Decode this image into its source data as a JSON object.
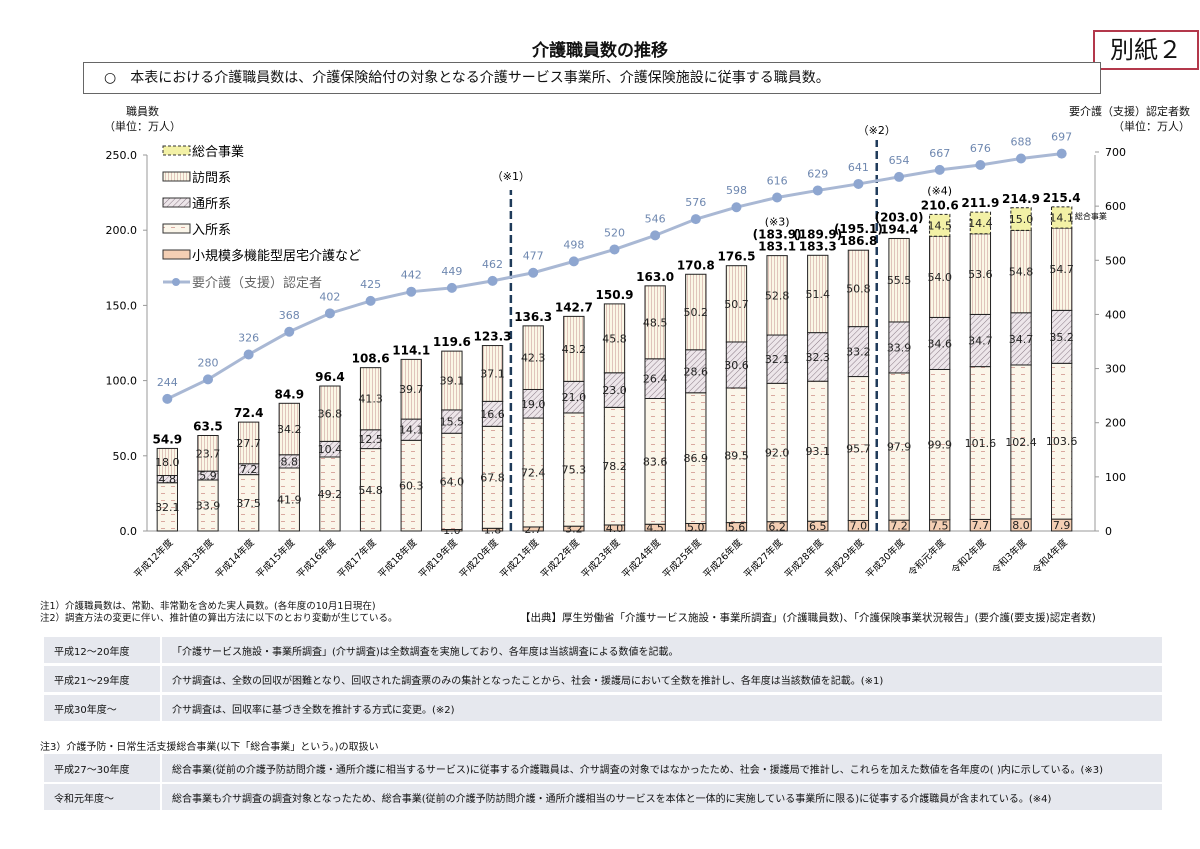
{
  "header": {
    "title": "介護職員数の推移",
    "badge": "別紙２",
    "lead": "○　本表における介護職員数は、介護保険給付の対象となる介護サービス事業所、介護保険施設に従事する職員数。"
  },
  "axes": {
    "left_label_line1": "職員数",
    "left_label_line2": "（単位：万人）",
    "right_label_line1": "要介護（支援）認定者数",
    "right_label_line2": "（単位：万人）"
  },
  "chart_data": {
    "type": "bar",
    "stacked": true,
    "title": "介護職員数の推移",
    "xlabel": "",
    "ylabel": "職員数（単位：万人）",
    "y2label": "要介護（支援）認定者数（単位：万人）",
    "ylim": [
      0,
      250
    ],
    "y2lim": [
      0,
      700
    ],
    "yticks": [
      "0.0",
      "50.0",
      "100.0",
      "150.0",
      "200.0",
      "250.0"
    ],
    "y2ticks": [
      "0",
      "100",
      "200",
      "300",
      "400",
      "500",
      "600",
      "700"
    ],
    "categories": [
      "平成12年度",
      "平成13年度",
      "平成14年度",
      "平成15年度",
      "平成16年度",
      "平成17年度",
      "平成18年度",
      "平成19年度",
      "平成20年度",
      "平成21年度",
      "平成22年度",
      "平成23年度",
      "平成24年度",
      "平成25年度",
      "平成26年度",
      "平成27年度",
      "平成28年度",
      "平成29年度",
      "平成30年度",
      "令和元年度",
      "令和2年度",
      "令和3年度",
      "令和4年度"
    ],
    "series": [
      {
        "name": "小規模多機能型居宅介護など",
        "values": [
          0,
          0,
          0,
          0,
          0,
          0,
          0,
          1.0,
          1.8,
          2.7,
          3.2,
          4.0,
          4.5,
          5.0,
          5.6,
          6.2,
          6.5,
          7.0,
          7.2,
          7.5,
          7.7,
          8.0,
          7.9
        ]
      },
      {
        "name": "入所系",
        "values": [
          32.1,
          33.9,
          37.5,
          41.9,
          49.2,
          54.8,
          60.3,
          64.0,
          67.8,
          72.4,
          75.3,
          78.2,
          83.6,
          86.9,
          89.5,
          92.0,
          93.1,
          95.7,
          97.9,
          99.9,
          101.6,
          102.4,
          103.6
        ]
      },
      {
        "name": "通所系",
        "values": [
          4.8,
          5.9,
          7.2,
          8.8,
          10.4,
          12.5,
          14.1,
          15.5,
          16.6,
          19.0,
          21.0,
          23.0,
          26.4,
          28.6,
          30.6,
          32.1,
          32.3,
          33.2,
          33.9,
          34.6,
          34.7,
          34.7,
          35.2
        ]
      },
      {
        "name": "訪問系",
        "values": [
          18.0,
          23.7,
          27.7,
          34.2,
          36.8,
          41.3,
          39.7,
          39.1,
          37.1,
          42.3,
          43.2,
          45.8,
          48.5,
          50.2,
          50.7,
          52.8,
          51.4,
          50.8,
          55.5,
          54.0,
          53.6,
          54.8,
          54.7
        ]
      },
      {
        "name": "総合事業",
        "values": [
          0,
          0,
          0,
          0,
          0,
          0,
          0,
          0,
          0,
          0,
          0,
          0,
          0,
          0,
          0,
          0,
          0,
          0,
          0,
          14.5,
          14.4,
          15.0,
          14.1
        ]
      },
      {
        "name": "要介護（支援）認定者",
        "type": "line",
        "axis": "right",
        "values": [
          244,
          280,
          326,
          368,
          402,
          425,
          442,
          449,
          462,
          477,
          498,
          520,
          546,
          576,
          598,
          616,
          629,
          641,
          654,
          667,
          676,
          688,
          697
        ]
      }
    ],
    "totals": [
      "54.9",
      "63.5",
      "72.4",
      "84.9",
      "96.4",
      "108.6",
      "114.1",
      "119.6",
      "123.3",
      "136.3",
      "142.7",
      "150.9",
      "163.0",
      "170.8",
      "176.5",
      "183.1",
      "183.3",
      "186.8",
      "194.4",
      "210.6",
      "211.9",
      "214.9",
      "215.4"
    ],
    "totals_paren": {
      "15": "(183.9)",
      "16": "(189.9)",
      "17": "(195.1)",
      "18": "(203.0)"
    },
    "annotations": [
      {
        "label": "（※1）",
        "position": "between 平成20年度 and 平成21年度"
      },
      {
        "label": "（※2）",
        "position": "between 平成29年度 and 平成30年度"
      },
      {
        "label": "(※3)",
        "position": "above 平成27年度"
      },
      {
        "label": "(※4)",
        "position": "above 令和元年度"
      },
      {
        "label": "総合事業",
        "position": "right of 令和4年度 総合事業 segment"
      }
    ],
    "legend": [
      "総合事業",
      "訪問系",
      "通所系",
      "入所系",
      "小規模多機能型居宅介護など",
      "要介護（支援）認定者"
    ],
    "legend_position": "upper-left",
    "grid": false
  },
  "notes": {
    "note1": "注1）介護職員数は、常勤、非常勤を含めた実人員数。(各年度の10月1日現在)",
    "note2": "注2）調査方法の変更に伴い、推計値の算出方法に以下のとおり変動が生じている。",
    "source": "【出典】厚生労働省「介護サービス施設・事業所調査」(介護職員数)、「介護保険事業状況報告」(要介護(要支援)認定者数)",
    "table1": [
      {
        "period": "平成12～20年度",
        "text": "「介護サービス施設・事業所調査」(介サ調査)は全数調査を実施しており、各年度は当該調査による数値を記載。"
      },
      {
        "period": "平成21～29年度",
        "text": "介サ調査は、全数の回収が困難となり、回収された調査票のみの集計となったことから、社会・援護局において全数を推計し、各年度は当該数値を記載。(※1)"
      },
      {
        "period": "平成30年度～",
        "text": "介サ調査は、回収率に基づき全数を推計する方式に変更。(※2)"
      }
    ],
    "note3": "注3）介護予防・日常生活支援総合事業(以下「総合事業」という。)の取扱い",
    "table2": [
      {
        "period": "平成27～30年度",
        "text": "総合事業(従前の介護予防訪問介護・通所介護に相当するサービス)に従事する介護職員は、介サ調査の対象ではなかったため、社会・援護局で推計し、これらを加えた数値を各年度の( )内に示している。(※3)"
      },
      {
        "period": "令和元年度～",
        "text": "総合事業も介サ調査の調査対象となったため、総合事業(従前の介護予防訪問介護・通所介護相当のサービスを本体と一体的に実施している事業所に限る)に従事する介護職員が含まれている。(※4)"
      }
    ]
  },
  "colors": {
    "line": "#a9b8d4",
    "marker": "#8ea6d0",
    "line_label": "#6f88b0",
    "divider": "#1f3b5a",
    "small": "#f4cfb4",
    "sogo": "#f3f1a6",
    "pattern_bg": "#fbf8ec",
    "badge_border": "#b3384b"
  }
}
